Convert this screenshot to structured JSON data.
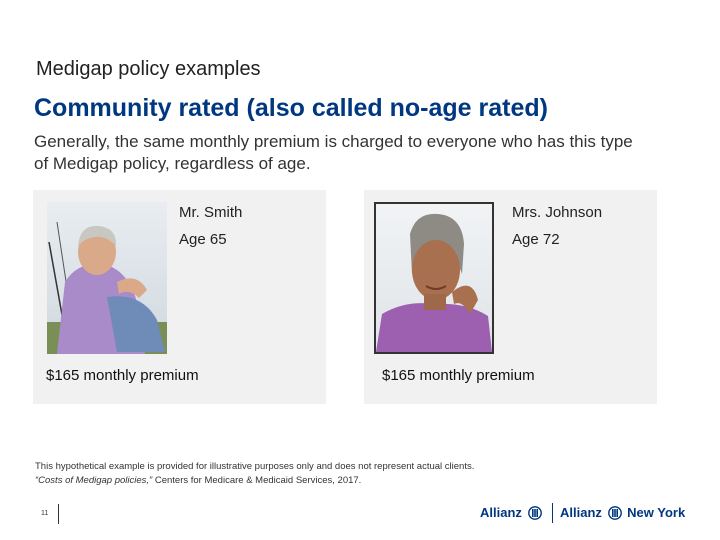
{
  "kicker": "Medigap policy examples",
  "title": "Community rated (also called no-age rated)",
  "subtitle": "Generally, the same monthly premium is charged to everyone who has this type of Medigap policy, regardless of age.",
  "cards": [
    {
      "name": "Mr. Smith",
      "age": "Age 65",
      "premium": "$165 monthly premium",
      "photo": "man-sitting-outdoors-photo"
    },
    {
      "name": "Mrs. Johnson",
      "age": "Age 72",
      "premium": "$165 monthly premium",
      "photo": "woman-portrait-photo"
    }
  ],
  "footnote": {
    "disclaimer": "This hypothetical example is provided for illustrative purposes only and does not represent actual clients.",
    "source_title": "“Costs of Medigap policies,”",
    "source_rest": " Centers for Medicare & Medicaid Services, 2017."
  },
  "page_number": "11",
  "logos": {
    "brand_one": "Allianz",
    "brand_two_a": "Allianz",
    "brand_two_b": "New York",
    "color": "#003781"
  },
  "colors": {
    "title": "#003781",
    "card_bg": "#f1f1f1"
  }
}
